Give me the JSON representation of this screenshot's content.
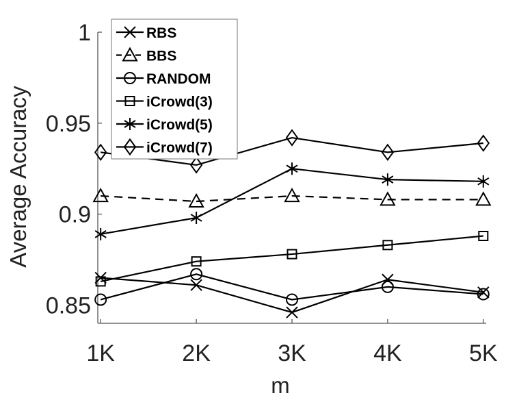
{
  "chart_data": {
    "type": "line",
    "title": "",
    "xlabel": "m",
    "ylabel": "Average Accuracy",
    "categories": [
      "1K",
      "2K",
      "3K",
      "4K",
      "5K"
    ],
    "x": [
      1,
      2,
      3,
      4,
      5
    ],
    "ylim": [
      0.84,
      1.0
    ],
    "yticks": [
      0.85,
      0.9,
      0.95,
      1
    ],
    "ytick_labels": [
      "0.85",
      "0.9",
      "0.95",
      "1"
    ],
    "grid": false,
    "legend_position": "top-left",
    "series": [
      {
        "name": "RBS",
        "marker": "x",
        "dash": false,
        "values": [
          0.865,
          0.861,
          0.846,
          0.864,
          0.857
        ]
      },
      {
        "name": "BBS",
        "marker": "triangle",
        "dash": true,
        "values": [
          0.91,
          0.907,
          0.91,
          0.908,
          0.908
        ]
      },
      {
        "name": "RANDOM",
        "marker": "circle",
        "dash": false,
        "values": [
          0.853,
          0.867,
          0.853,
          0.86,
          0.856
        ]
      },
      {
        "name": "iCrowd(3)",
        "marker": "square",
        "dash": false,
        "values": [
          0.863,
          0.874,
          0.878,
          0.883,
          0.888
        ]
      },
      {
        "name": "iCrowd(5)",
        "marker": "asterisk",
        "dash": false,
        "values": [
          0.889,
          0.898,
          0.925,
          0.919,
          0.918
        ]
      },
      {
        "name": "iCrowd(7)",
        "marker": "diamond",
        "dash": false,
        "values": [
          0.934,
          0.927,
          0.942,
          0.934,
          0.939
        ]
      }
    ],
    "line_color": "#000000",
    "axis_color": "#555555"
  }
}
